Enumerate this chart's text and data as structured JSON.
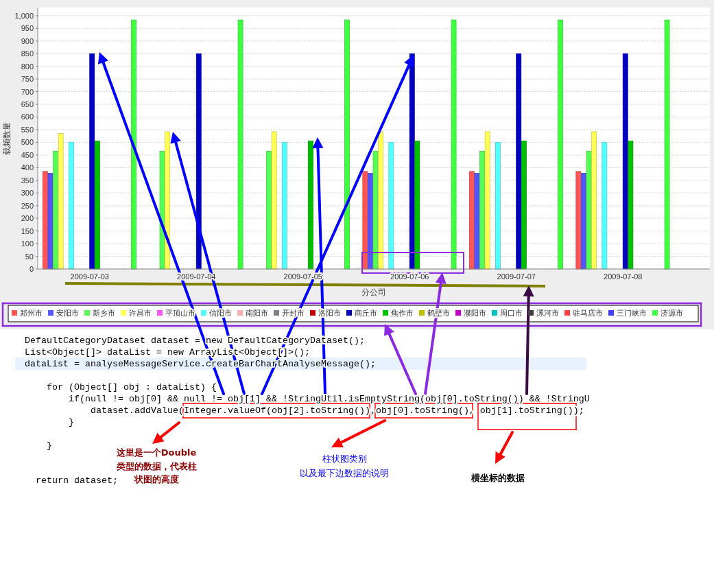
{
  "chart_data": {
    "type": "bar",
    "categories": [
      "2009-07-03",
      "2009-07-04",
      "2009-07-05",
      "2009-07-06",
      "2009-07-07",
      "2009-07-08"
    ],
    "series": [
      {
        "name": "郑州市",
        "color": "#ff5555",
        "values": [
          385,
          0,
          0,
          385,
          385,
          385
        ]
      },
      {
        "name": "安阳市",
        "color": "#5555ff",
        "values": [
          378,
          0,
          0,
          378,
          378,
          378
        ]
      },
      {
        "name": "新乡市",
        "color": "#55ff55",
        "values": [
          465,
          465,
          465,
          465,
          465,
          465
        ]
      },
      {
        "name": "许昌市",
        "color": "#ffff55",
        "values": [
          535,
          542,
          542,
          542,
          542,
          542
        ]
      },
      {
        "name": "平顶山市",
        "color": "#ff55ff",
        "values": [
          0,
          0,
          0,
          0,
          0,
          0
        ]
      },
      {
        "name": "信阳市",
        "color": "#55ffff",
        "values": [
          500,
          0,
          500,
          500,
          500,
          500
        ]
      },
      {
        "name": "南阳市",
        "color": "#ffafaf",
        "values": [
          0,
          0,
          0,
          0,
          0,
          0
        ]
      },
      {
        "name": "开封市",
        "color": "#808080",
        "values": [
          0,
          0,
          0,
          0,
          0,
          0
        ]
      },
      {
        "name": "洛阳市",
        "color": "#c00000",
        "values": [
          0,
          0,
          0,
          0,
          0,
          0
        ]
      },
      {
        "name": "商丘市",
        "color": "#0000c0",
        "values": [
          850,
          850,
          0,
          850,
          850,
          850
        ]
      },
      {
        "name": "焦作市",
        "color": "#00c000",
        "values": [
          505,
          0,
          505,
          505,
          505,
          505
        ]
      },
      {
        "name": "鹤壁市",
        "color": "#c0c000",
        "values": [
          0,
          0,
          0,
          0,
          0,
          0
        ]
      },
      {
        "name": "濮阳市",
        "color": "#c000c0",
        "values": [
          0,
          0,
          0,
          0,
          0,
          0
        ]
      },
      {
        "name": "周口市",
        "color": "#00c0c0",
        "values": [
          0,
          0,
          0,
          0,
          0,
          0
        ]
      },
      {
        "name": "漯河市",
        "color": "#404040",
        "values": [
          0,
          0,
          0,
          0,
          0,
          0
        ]
      },
      {
        "name": "驻马店市",
        "color": "#ff4040",
        "values": [
          0,
          0,
          0,
          0,
          0,
          0
        ]
      },
      {
        "name": "三门峡市",
        "color": "#4040ff",
        "values": [
          0,
          0,
          0,
          0,
          0,
          0
        ]
      },
      {
        "name": "济源市",
        "color": "#40ff40",
        "values": [
          983,
          983,
          983,
          983,
          983,
          983
        ]
      }
    ],
    "xlabel": "分公司",
    "ylabel": "载频数量",
    "ylim": [
      0,
      1032
    ],
    "yticks": [
      0,
      50,
      100,
      150,
      200,
      250,
      300,
      350,
      400,
      450,
      500,
      550,
      600,
      650,
      700,
      750,
      800,
      850,
      900,
      950,
      {
        "value": 1000,
        "label": "1,000"
      }
    ],
    "grid": "y",
    "legend": "bottom",
    "annotations": [
      "DefaultCategoryDataset dataset = new DefaultCategoryDataset();\nList<Object[]> dataList = new ArrayList<Object[]>();\ndataList = analyseMessageService.createBarChartAnalyseMessage();\n\n    for (Object[] obj : dataList) {\n        if(null != obj[0] && null != obj[1] && !StringUtil.isEmptyString(obj[0].toString()) && !StringU\n            dataset.addValue(Integer.valueOf(obj[2].toString()),obj[0].toString(), obj[1].toString());\n        }\n\n    }\n\n\n  return dataset;",
      "这里是一个Double类型的数据，代表柱状图的高度",
      "柱状图类别",
      "以及最下边数据的说明",
      "横坐标的数据"
    ]
  }
}
